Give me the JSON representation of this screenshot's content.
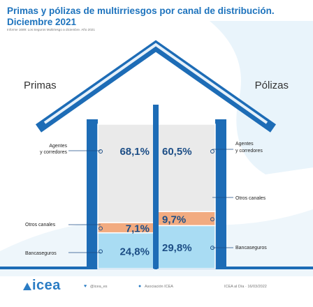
{
  "header": {
    "title": "Primas y pólizas de multirriesgos por canal de distribución. Diciembre 2021",
    "subtitle": "Informe 1689: Los Seguros Multiriesgo a diciembre. Año 2021"
  },
  "chart_data": {
    "type": "bar",
    "categories": [
      "Primas",
      "Pólizas"
    ],
    "series": [
      {
        "name": "Agentes y corredores",
        "values": [
          68.1,
          60.5
        ],
        "labels": [
          "68,1%",
          "60,5%"
        ],
        "label_left": "Agentes y corredores",
        "label_right": "Agentes y corredores"
      },
      {
        "name": "Otros canales",
        "values": [
          7.1,
          9.7
        ],
        "labels": [
          "7,1%",
          "9,7%"
        ],
        "label_left": "Otros canales",
        "label_right": "Otros canales"
      },
      {
        "name": "Bancaseguros",
        "values": [
          24.8,
          29.8
        ],
        "labels": [
          "24,8%",
          "29,8%"
        ],
        "label_left": "Bancaseguros",
        "label_right": "Bancaseguros"
      }
    ],
    "stacked": true,
    "ylim": [
      0,
      100
    ],
    "colors": {
      "Agentes y corredores": "#eaeaea",
      "Otros canales": "#f2ab80",
      "Bancaseguros": "#a9dcf3",
      "house": "#1d6cb6"
    },
    "legend": "none"
  },
  "footer": {
    "logo": "icea",
    "twitter": "@icea_es",
    "linkedin": "Asociación ICEA",
    "source": "ICEA al Día · 16/03/2022"
  }
}
